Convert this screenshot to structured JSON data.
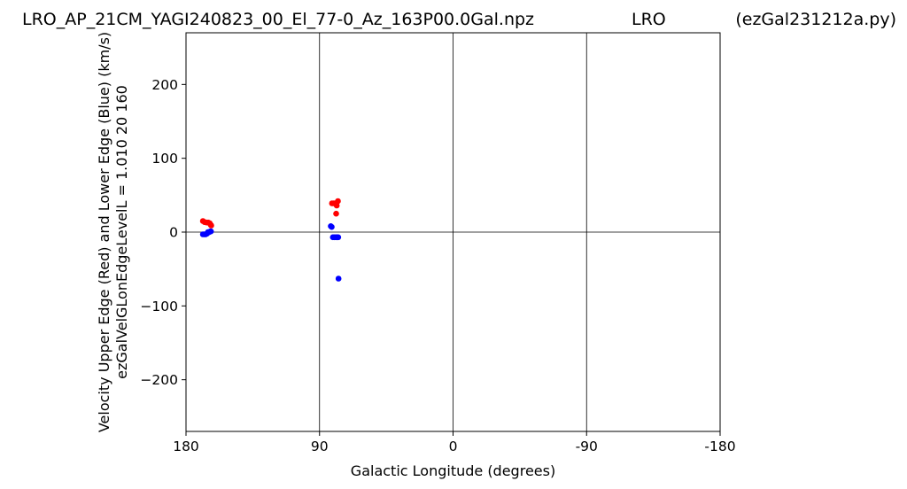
{
  "header": {
    "left": "LRO_AP_21CM_YAGI240823_00_El_77-0_Az_163P00.0Gal.npz",
    "center": "LRO",
    "right": "(ezGal231212a.py)"
  },
  "chart_data": {
    "type": "scatter",
    "xlabel": "Galactic Longitude (degrees)",
    "ylabel_lines": [
      "Velocity Upper Edge (Red) and Lower Edge (Blue)  (km/s)",
      "ezGalVelGLonEdgeLevelL = 1.010  20  160"
    ],
    "xlim": [
      180,
      -180
    ],
    "ylim": [
      -270,
      270
    ],
    "x_ticks": [
      180,
      90,
      0,
      -90,
      -180
    ],
    "x_tick_labels": [
      "180",
      "90",
      "0",
      "-90",
      "-180"
    ],
    "y_ticks": [
      -200,
      -100,
      0,
      100,
      200
    ],
    "y_tick_labels": [
      "−200",
      "−100",
      "0",
      "100",
      "200"
    ],
    "vertical_gridlines_at": [
      90,
      0,
      -90
    ],
    "horizontal_line_at": 0,
    "series": [
      {
        "color": "#ff0000",
        "points": [
          [
            168.6,
            15
          ],
          [
            167.4,
            13.5
          ],
          [
            166.2,
            13
          ],
          [
            165.0,
            13
          ],
          [
            164.0,
            12
          ],
          [
            163.4,
            10
          ],
          [
            163.0,
            9
          ],
          [
            81.6,
            39
          ],
          [
            80.5,
            39
          ],
          [
            79.5,
            39
          ],
          [
            79.0,
            38
          ],
          [
            78.4,
            36
          ],
          [
            78.8,
            25
          ],
          [
            77.6,
            42
          ]
        ]
      },
      {
        "color": "#0000ff",
        "points": [
          [
            168.6,
            -3
          ],
          [
            167.6,
            -3
          ],
          [
            166.8,
            -3
          ],
          [
            165.8,
            -2
          ],
          [
            165.2,
            0
          ],
          [
            164.4,
            0
          ],
          [
            163.6,
            1
          ],
          [
            163.2,
            1
          ],
          [
            82.4,
            8
          ],
          [
            81.8,
            7
          ],
          [
            81.0,
            -7
          ],
          [
            80.0,
            -7
          ],
          [
            79.0,
            -7
          ],
          [
            78.2,
            -7
          ],
          [
            77.4,
            -7
          ],
          [
            77.2,
            -63
          ]
        ]
      }
    ]
  }
}
